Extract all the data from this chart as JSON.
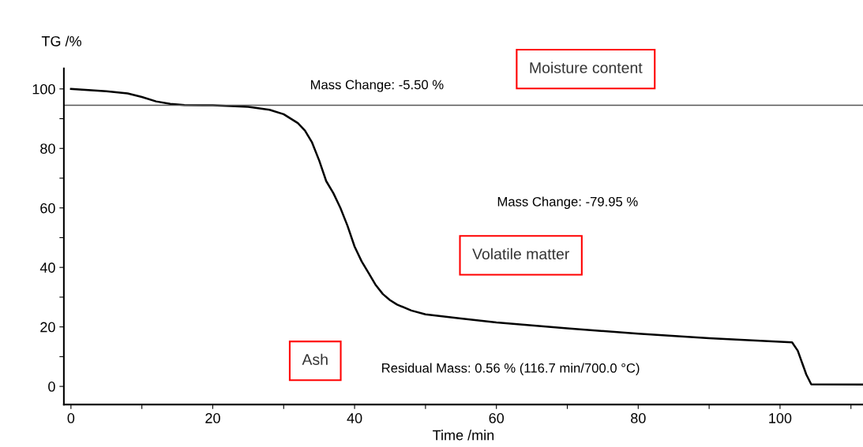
{
  "chart_data": {
    "type": "line",
    "xlabel": "Time /min",
    "ylabel": "TG /%",
    "xlim": [
      -1,
      111.7
    ],
    "ylim": [
      -6.1,
      106.9
    ],
    "xticks": [
      0,
      {
        "value": 10,
        "label": null
      },
      20,
      {
        "value": 30,
        "label": null
      },
      40,
      {
        "value": 50,
        "label": null
      },
      60,
      {
        "value": 70,
        "label": null
      },
      80,
      {
        "value": 90,
        "label": null
      },
      100,
      {
        "value": 110,
        "label": null
      }
    ],
    "yticks": [
      0,
      {
        "value": 10,
        "label": null
      },
      20,
      {
        "value": 30,
        "label": null
      },
      40,
      {
        "value": 50,
        "label": null
      },
      60,
      {
        "value": 70,
        "label": null
      },
      80,
      {
        "value": 90,
        "label": null
      },
      100
    ],
    "grid": false,
    "legend": false,
    "marker": "none",
    "line_style": "solid",
    "series": [
      {
        "color": "#000000",
        "x": [
          0,
          5,
          8,
          10,
          12,
          14,
          16,
          20,
          25,
          28,
          30,
          32,
          33,
          34,
          35,
          36,
          37,
          38,
          39,
          40,
          41,
          42,
          43,
          44,
          45,
          46,
          48,
          50,
          55,
          60,
          70,
          80,
          90,
          100,
          101.7,
          102.5,
          103.7,
          104.4,
          111.7
        ],
        "values": [
          100,
          99.2,
          98.5,
          97.3,
          95.8,
          95,
          94.6,
          94.5,
          94,
          93,
          91.5,
          88.5,
          86,
          82,
          76,
          69,
          65,
          60,
          54,
          47,
          42,
          38,
          34,
          31,
          29,
          27.5,
          25.5,
          24.2,
          22.8,
          21.5,
          19.5,
          17.7,
          16.2,
          15,
          14.8,
          12,
          4,
          0.7,
          0.6
        ]
      }
    ],
    "ref_lines": [
      {
        "axis": "y",
        "value": 94.5,
        "label": null,
        "color": "#555555"
      }
    ],
    "annotations": [
      "Mass Change: -5.50 %",
      "Mass Change: -79.95 %",
      "Residual Mass: 0.56 % (116.7 min/700.0 °C)",
      "Moisture content",
      "Volatile matter",
      "Ash"
    ]
  }
}
